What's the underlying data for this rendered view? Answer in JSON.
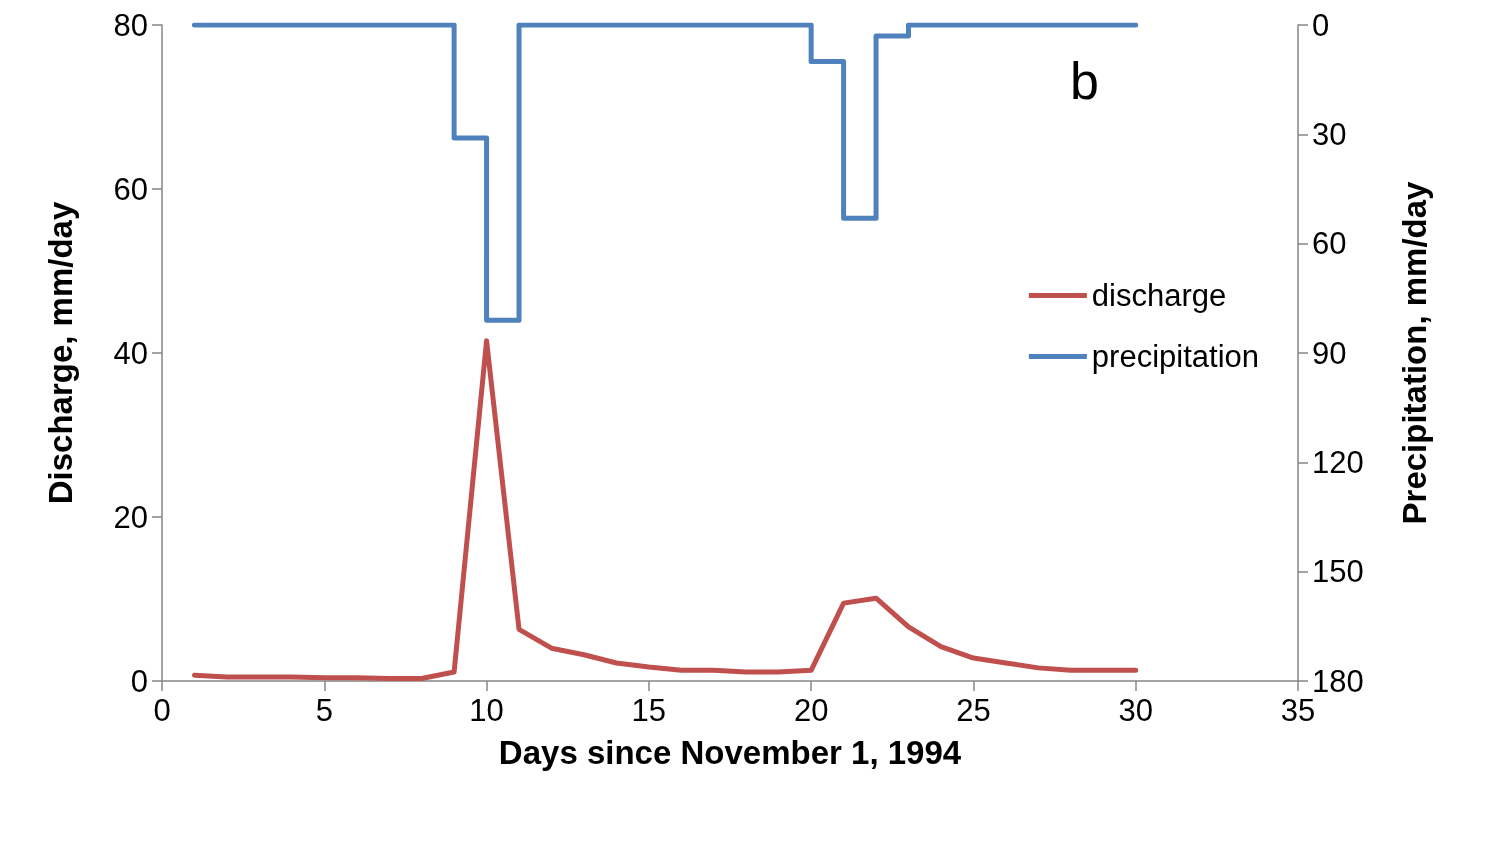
{
  "chart_data": {
    "type": "line",
    "xlabel": "Days since November 1, 1994",
    "ylabel": "Discharge, mm/day",
    "y2label": "Precipitation, mm/day",
    "x": [
      1,
      2,
      3,
      4,
      5,
      6,
      7,
      8,
      9,
      10,
      11,
      12,
      13,
      14,
      15,
      16,
      17,
      18,
      19,
      20,
      21,
      22,
      23,
      24,
      25,
      26,
      27,
      28,
      29,
      30
    ],
    "series": [
      {
        "name": "discharge",
        "color": "#c0504d",
        "values": [
          0.7,
          0.5,
          0.5,
          0.5,
          0.4,
          0.4,
          0.3,
          0.3,
          1.1,
          41.5,
          6.3,
          4,
          3.2,
          2.2,
          1.7,
          1.3,
          1.3,
          1.1,
          1.1,
          1.3,
          9.5,
          10.1,
          6.6,
          4.2,
          2.8,
          2.2,
          1.6,
          1.3,
          1.3,
          1.3
        ]
      },
      {
        "name": "precipitation",
        "type": "step",
        "axis": "y2",
        "color": "#4f81bd",
        "values": [
          0,
          0,
          0,
          0,
          0,
          0,
          0,
          0,
          31,
          81,
          0,
          0,
          0,
          0,
          0,
          0,
          0,
          0,
          0,
          10,
          53,
          3,
          0,
          0,
          0,
          0,
          0,
          0,
          0,
          0
        ]
      }
    ],
    "xlim": [
      0,
      35
    ],
    "xticks": [
      0,
      5,
      10,
      15,
      20,
      25,
      30,
      35
    ],
    "ylim": [
      0,
      80
    ],
    "yticks": [
      0,
      20,
      40,
      60,
      80
    ],
    "y2lim": [
      180,
      0
    ],
    "y2ticks": [
      0,
      30,
      60,
      90,
      120,
      150,
      180
    ],
    "annotations": [
      "b"
    ],
    "legend": "right",
    "grid": false,
    "marker": "none",
    "line_style": "solid"
  }
}
